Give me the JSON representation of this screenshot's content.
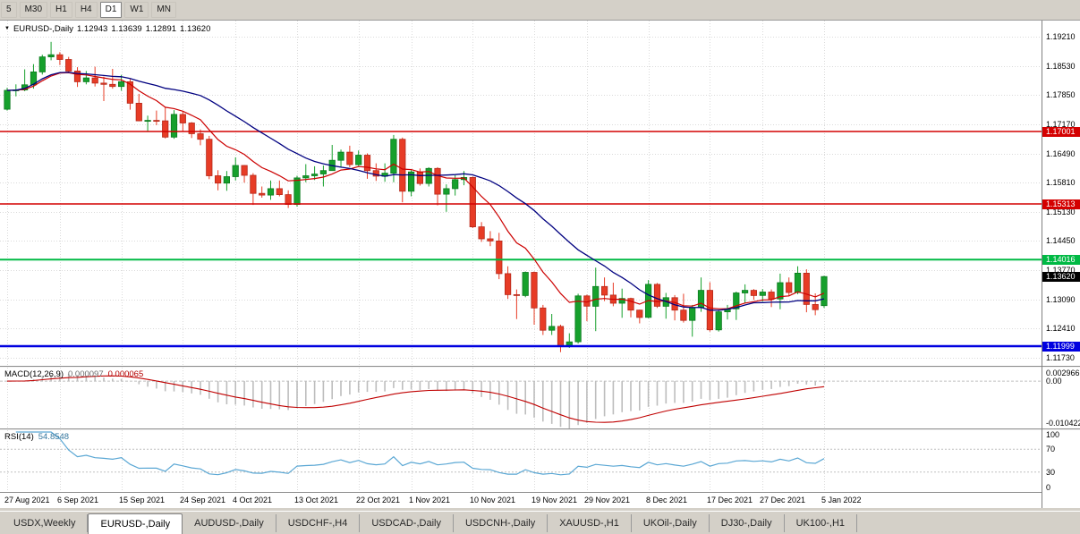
{
  "toolbar": {
    "periods": [
      {
        "label": "5",
        "active": false
      },
      {
        "label": "M30",
        "active": false
      },
      {
        "label": "H1",
        "active": false
      },
      {
        "label": "H4",
        "active": false
      },
      {
        "label": "D1",
        "active": true
      },
      {
        "label": "W1",
        "active": false
      },
      {
        "label": "MN",
        "active": false
      }
    ]
  },
  "chart_header": {
    "symbol": "EURUSD-,Daily",
    "o": "1.12943",
    "h": "1.13639",
    "l": "1.12891",
    "c": "1.13620"
  },
  "indicators": {
    "macd": {
      "name": "MACD(12,26,9)",
      "value_main": "0.000097",
      "value_signal": "0.000065"
    },
    "rsi": {
      "name": "RSI(14)",
      "value": "54.8548",
      "levels": [
        70,
        30
      ]
    }
  },
  "price_axis": {
    "main_ticks": [
      "1.19210",
      "1.18530",
      "1.17850",
      "1.17170",
      "1.16490",
      "1.15810",
      "1.15130",
      "1.14450",
      "1.13770",
      "1.13090",
      "1.12410",
      "1.11730"
    ],
    "macd_ticks": [
      "0.002966",
      "0.00",
      "-0.010422"
    ],
    "rsi_ticks": [
      "100",
      "70",
      "30",
      "0"
    ]
  },
  "hlines": [
    {
      "label": "1.17001",
      "price": 1.17001,
      "color": "#d40000",
      "width": 1.4
    },
    {
      "label": "1.15313",
      "price": 1.15313,
      "color": "#d40000",
      "width": 1.6
    },
    {
      "label": "1.14016",
      "price": 1.14016,
      "color": "#00b944",
      "width": 2.0
    },
    {
      "label": "1.11999",
      "price": 1.11999,
      "color": "#0000e0",
      "width": 2.4
    }
  ],
  "current_price": {
    "label": "1.13620",
    "price": 1.1362,
    "color": "#000000"
  },
  "style": {
    "grid": "#dadada",
    "up": "#16a02c",
    "up_dark": "#0b7a1e",
    "down": "#e73c26",
    "down_dark": "#b5281a",
    "ma_fast": "#cc0000",
    "ma_slow": "#000080",
    "macd_bar": "#bdbdbd",
    "macd_signal": "#c00000",
    "rsi_line": "#5aa7d4",
    "level": "#c0c0c0"
  },
  "chart_data": {
    "type": "candlestick",
    "symbol": "EURUSD-",
    "timeframe": "Daily",
    "x_labels": [
      {
        "i": 0,
        "t": "27 Aug 2021"
      },
      {
        "i": 6,
        "t": "6 Sep 2021"
      },
      {
        "i": 13,
        "t": "15 Sep 2021"
      },
      {
        "i": 20,
        "t": "24 Sep 2021"
      },
      {
        "i": 26,
        "t": "4 Oct 2021"
      },
      {
        "i": 33,
        "t": "13 Oct 2021"
      },
      {
        "i": 40,
        "t": "22 Oct 2021"
      },
      {
        "i": 46,
        "t": "1 Nov 2021"
      },
      {
        "i": 53,
        "t": "10 Nov 2021"
      },
      {
        "i": 60,
        "t": "19 Nov 2021"
      },
      {
        "i": 66,
        "t": "29 Nov 2021"
      },
      {
        "i": 73,
        "t": "8 Dec 2021"
      },
      {
        "i": 80,
        "t": "17 Dec 2021"
      },
      {
        "i": 86,
        "t": "27 Dec 2021"
      },
      {
        "i": 93,
        "t": "5 Jan 2022"
      }
    ],
    "candles": [
      [
        1.1752,
        1.1802,
        1.1749,
        1.1796
      ],
      [
        1.1796,
        1.181,
        1.1782,
        1.1797
      ],
      [
        1.1797,
        1.1845,
        1.1794,
        1.1809
      ],
      [
        1.1809,
        1.1857,
        1.18,
        1.1839
      ],
      [
        1.1839,
        1.1879,
        1.1833,
        1.1874
      ],
      [
        1.1874,
        1.1909,
        1.1866,
        1.1879
      ],
      [
        1.1879,
        1.1885,
        1.1855,
        1.1868
      ],
      [
        1.1868,
        1.1874,
        1.1837,
        1.1841
      ],
      [
        1.1841,
        1.185,
        1.1804,
        1.1816
      ],
      [
        1.1816,
        1.1841,
        1.181,
        1.1825
      ],
      [
        1.1825,
        1.1851,
        1.1805,
        1.1813
      ],
      [
        1.1813,
        1.1828,
        1.1771,
        1.181
      ],
      [
        1.181,
        1.1846,
        1.18,
        1.1805
      ],
      [
        1.1805,
        1.1832,
        1.1795,
        1.1816
      ],
      [
        1.1816,
        1.1822,
        1.1751,
        1.1766
      ],
      [
        1.1766,
        1.1788,
        1.1724,
        1.1725
      ],
      [
        1.1725,
        1.1737,
        1.17,
        1.1726
      ],
      [
        1.1726,
        1.1749,
        1.1715,
        1.1725
      ],
      [
        1.1725,
        1.1756,
        1.1684,
        1.1687
      ],
      [
        1.1687,
        1.175,
        1.1683,
        1.174
      ],
      [
        1.174,
        1.1747,
        1.1701,
        1.172
      ],
      [
        1.172,
        1.1722,
        1.1685,
        1.1695
      ],
      [
        1.1695,
        1.1705,
        1.1668,
        1.1682
      ],
      [
        1.1682,
        1.169,
        1.1589,
        1.1597
      ],
      [
        1.1597,
        1.161,
        1.1563,
        1.158
      ],
      [
        1.158,
        1.1608,
        1.1562,
        1.1595
      ],
      [
        1.1595,
        1.164,
        1.1586,
        1.1621
      ],
      [
        1.1621,
        1.1622,
        1.1581,
        1.1598
      ],
      [
        1.1598,
        1.1603,
        1.1529,
        1.1556
      ],
      [
        1.1556,
        1.1572,
        1.1546,
        1.1552
      ],
      [
        1.1552,
        1.1586,
        1.1541,
        1.1567
      ],
      [
        1.1567,
        1.1586,
        1.1549,
        1.1553
      ],
      [
        1.1553,
        1.1563,
        1.1522,
        1.153
      ],
      [
        1.153,
        1.1597,
        1.1525,
        1.1592
      ],
      [
        1.1592,
        1.1624,
        1.1582,
        1.1597
      ],
      [
        1.1597,
        1.1619,
        1.1587,
        1.1601
      ],
      [
        1.1601,
        1.1621,
        1.1572,
        1.1609
      ],
      [
        1.1609,
        1.1669,
        1.1609,
        1.1633
      ],
      [
        1.1633,
        1.1658,
        1.1616,
        1.1652
      ],
      [
        1.1652,
        1.1667,
        1.1617,
        1.1623
      ],
      [
        1.1623,
        1.1656,
        1.162,
        1.1645
      ],
      [
        1.1645,
        1.1649,
        1.159,
        1.1609
      ],
      [
        1.1609,
        1.1626,
        1.1585,
        1.1596
      ],
      [
        1.1596,
        1.1626,
        1.1583,
        1.1603
      ],
      [
        1.1603,
        1.1692,
        1.1582,
        1.1682
      ],
      [
        1.1682,
        1.1686,
        1.1535,
        1.1561
      ],
      [
        1.1561,
        1.161,
        1.1549,
        1.1606
      ],
      [
        1.1606,
        1.1614,
        1.1574,
        1.1579
      ],
      [
        1.1579,
        1.1617,
        1.1572,
        1.1614
      ],
      [
        1.1614,
        1.1617,
        1.1528,
        1.1554
      ],
      [
        1.1554,
        1.1577,
        1.1513,
        1.1567
      ],
      [
        1.1567,
        1.1598,
        1.1551,
        1.1588
      ],
      [
        1.1588,
        1.1608,
        1.1575,
        1.1593
      ],
      [
        1.1593,
        1.1595,
        1.1475,
        1.1478
      ],
      [
        1.1478,
        1.1489,
        1.1443,
        1.145
      ],
      [
        1.145,
        1.1468,
        1.1433,
        1.1445
      ],
      [
        1.1445,
        1.1464,
        1.1356,
        1.1369
      ],
      [
        1.1369,
        1.1386,
        1.131,
        1.132
      ],
      [
        1.132,
        1.1332,
        1.1263,
        1.1318
      ],
      [
        1.1318,
        1.1374,
        1.1314,
        1.1372
      ],
      [
        1.1372,
        1.1374,
        1.125,
        1.1289
      ],
      [
        1.1289,
        1.1296,
        1.1226,
        1.1237
      ],
      [
        1.1237,
        1.1275,
        1.1226,
        1.1246
      ],
      [
        1.1246,
        1.125,
        1.1186,
        1.1201
      ],
      [
        1.1201,
        1.123,
        1.1196,
        1.121
      ],
      [
        1.121,
        1.1322,
        1.1206,
        1.1317
      ],
      [
        1.1317,
        1.132,
        1.1258,
        1.1293
      ],
      [
        1.1293,
        1.1383,
        1.1235,
        1.1339
      ],
      [
        1.1339,
        1.136,
        1.1305,
        1.1319
      ],
      [
        1.1319,
        1.1348,
        1.1293,
        1.13
      ],
      [
        1.13,
        1.1334,
        1.1266,
        1.1311
      ],
      [
        1.1311,
        1.1313,
        1.1267,
        1.1284
      ],
      [
        1.1284,
        1.1285,
        1.1253,
        1.1267
      ],
      [
        1.1267,
        1.1354,
        1.1265,
        1.1344
      ],
      [
        1.1344,
        1.1347,
        1.1289,
        1.1293
      ],
      [
        1.1293,
        1.1324,
        1.1264,
        1.1313
      ],
      [
        1.1313,
        1.1319,
        1.126,
        1.1284
      ],
      [
        1.1284,
        1.1322,
        1.1255,
        1.126
      ],
      [
        1.126,
        1.1296,
        1.1222,
        1.129
      ],
      [
        1.129,
        1.136,
        1.128,
        1.133
      ],
      [
        1.133,
        1.1349,
        1.1234,
        1.1238
      ],
      [
        1.1238,
        1.1285,
        1.1234,
        1.128
      ],
      [
        1.128,
        1.1296,
        1.1262,
        1.1287
      ],
      [
        1.1287,
        1.1327,
        1.1261,
        1.1324
      ],
      [
        1.1324,
        1.1344,
        1.13,
        1.133
      ],
      [
        1.133,
        1.1333,
        1.1308,
        1.1318
      ],
      [
        1.1318,
        1.1333,
        1.1304,
        1.1326
      ],
      [
        1.1326,
        1.1332,
        1.1291,
        1.131
      ],
      [
        1.131,
        1.1369,
        1.1286,
        1.1348
      ],
      [
        1.1348,
        1.136,
        1.1316,
        1.1325
      ],
      [
        1.1325,
        1.1386,
        1.1321,
        1.137
      ],
      [
        1.137,
        1.1379,
        1.1279,
        1.1297
      ],
      [
        1.1297,
        1.1323,
        1.1272,
        1.1285
      ],
      [
        1.12943,
        1.13639,
        1.12891,
        1.1362
      ]
    ]
  },
  "tabs": [
    {
      "label": "USDX,Weekly",
      "active": false
    },
    {
      "label": "EURUSD-,Daily",
      "active": true
    },
    {
      "label": "AUDUSD-,Daily",
      "active": false
    },
    {
      "label": "USDCHF-,H4",
      "active": false
    },
    {
      "label": "USDCAD-,Daily",
      "active": false
    },
    {
      "label": "USDCNH-,Daily",
      "active": false
    },
    {
      "label": "XAUUSD-,H1",
      "active": false
    },
    {
      "label": "UKOil-,Daily",
      "active": false
    },
    {
      "label": "DJ30-,Daily",
      "active": false
    },
    {
      "label": "UK100-,H1",
      "active": false
    }
  ]
}
